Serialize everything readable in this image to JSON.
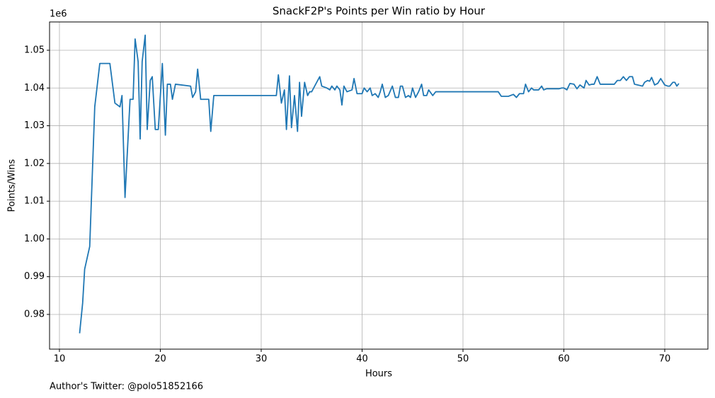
{
  "chart_data": {
    "type": "line",
    "title": "SnackF2P's Points per Win ratio by Hour",
    "x_label": "Hours",
    "y_label": "Points/Wins",
    "y_offset_label": "1e6",
    "footnote": "Author's Twitter: @polo51852166",
    "color": "#1f77b4",
    "grid": true,
    "xlim": [
      9.02,
      74.28
    ],
    "ylim": [
      0.9708,
      1.0575
    ],
    "xticks": [
      10,
      20,
      30,
      40,
      50,
      60,
      70
    ],
    "yticks": [
      0.98,
      0.99,
      {
        "value": 1,
        "label": "1.00"
      },
      1.01,
      1.02,
      1.03,
      1.04,
      1.05
    ],
    "x": [
      12.0,
      12.3,
      12.5,
      13.0,
      13.5,
      14.0,
      15.0,
      15.5,
      16.0,
      16.2,
      16.5,
      17.0,
      17.3,
      17.5,
      17.8,
      18.0,
      18.2,
      18.5,
      18.7,
      19.0,
      19.2,
      19.5,
      19.8,
      20.2,
      20.5,
      20.7,
      21.0,
      21.2,
      21.5,
      23.0,
      23.2,
      23.5,
      23.7,
      24.0,
      24.8,
      25.0,
      25.3,
      31.5,
      31.7,
      32.0,
      32.3,
      32.5,
      32.8,
      33.0,
      33.3,
      33.6,
      33.8,
      34.0,
      34.3,
      34.6,
      34.8,
      35.0,
      35.5,
      35.8,
      36.0,
      36.5,
      36.8,
      37.0,
      37.3,
      37.5,
      37.8,
      38.0,
      38.2,
      38.5,
      39.0,
      39.2,
      39.5,
      40.0,
      40.2,
      40.5,
      40.8,
      41.0,
      41.3,
      41.6,
      41.8,
      42.0,
      42.3,
      42.6,
      43.0,
      43.3,
      43.6,
      43.8,
      44.0,
      44.3,
      44.6,
      44.8,
      45.0,
      45.3,
      45.6,
      45.9,
      46.1,
      46.4,
      46.6,
      47.0,
      47.3,
      53.5,
      53.8,
      54.5,
      55.0,
      55.3,
      55.6,
      56.0,
      56.2,
      56.5,
      56.8,
      57.0,
      57.5,
      57.8,
      58.0,
      58.3,
      59.5,
      59.8,
      60.0,
      60.3,
      60.6,
      61.0,
      61.3,
      61.6,
      62.0,
      62.2,
      62.5,
      62.8,
      63.0,
      63.3,
      63.6,
      65.0,
      65.3,
      65.6,
      65.9,
      66.2,
      66.5,
      66.8,
      67.0,
      67.8,
      68.0,
      68.3,
      68.5,
      68.7,
      69.0,
      69.3,
      69.6,
      70.0,
      70.3,
      70.5,
      70.8,
      71.0,
      71.2,
      71.4
    ],
    "values": [
      0.975,
      0.983,
      0.992,
      0.998,
      1.035,
      1.0465,
      1.0465,
      1.036,
      1.035,
      1.038,
      1.011,
      1.037,
      1.037,
      1.053,
      1.047,
      1.0265,
      1.047,
      1.054,
      1.029,
      1.042,
      1.043,
      1.029,
      1.029,
      1.0465,
      1.0275,
      1.041,
      1.041,
      1.037,
      1.041,
      1.0405,
      1.0375,
      1.039,
      1.045,
      1.037,
      1.037,
      1.0285,
      1.038,
      1.038,
      1.0435,
      1.036,
      1.0395,
      1.029,
      1.0432,
      1.0295,
      1.038,
      1.0285,
      1.0415,
      1.0325,
      1.0415,
      1.038,
      1.039,
      1.039,
      1.0415,
      1.043,
      1.0405,
      1.04,
      1.0395,
      1.0405,
      1.0395,
      1.0405,
      1.0395,
      1.0355,
      1.0405,
      1.039,
      1.0395,
      1.0425,
      1.0385,
      1.0385,
      1.04,
      1.039,
      1.04,
      1.038,
      1.0385,
      1.0375,
      1.039,
      1.041,
      1.0375,
      1.038,
      1.0405,
      1.0375,
      1.0375,
      1.0405,
      1.0405,
      1.0375,
      1.038,
      1.0375,
      1.04,
      1.0375,
      1.039,
      1.041,
      1.038,
      1.038,
      1.0395,
      1.038,
      1.039,
      1.039,
      1.0378,
      1.0378,
      1.0383,
      1.0375,
      1.0385,
      1.0385,
      1.041,
      1.039,
      1.04,
      1.0395,
      1.0395,
      1.0405,
      1.0395,
      1.0398,
      1.0398,
      1.04,
      1.04,
      1.0395,
      1.0412,
      1.041,
      1.0398,
      1.0408,
      1.04,
      1.042,
      1.0408,
      1.041,
      1.041,
      1.043,
      1.041,
      1.041,
      1.042,
      1.042,
      1.043,
      1.042,
      1.043,
      1.043,
      1.041,
      1.0405,
      1.0415,
      1.042,
      1.0418,
      1.0428,
      1.0408,
      1.0412,
      1.0425,
      1.0408,
      1.0405,
      1.0405,
      1.0415,
      1.0415,
      1.0405,
      1.0412
    ]
  }
}
